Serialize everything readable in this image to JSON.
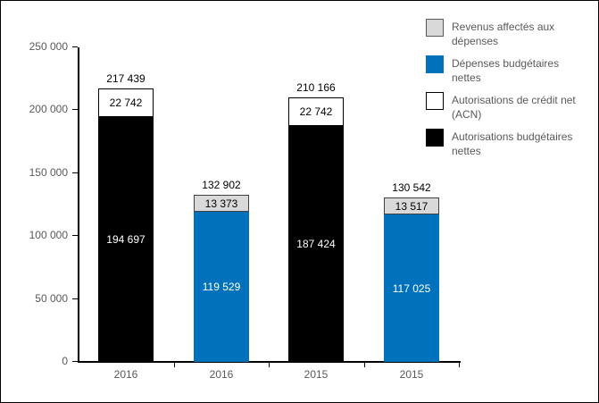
{
  "chart_data": {
    "type": "bar",
    "stacked": true,
    "title": "",
    "xlabel": "",
    "ylabel": "",
    "ylim": [
      0,
      250000
    ],
    "grid": false,
    "legend_position": "top-right",
    "yticks": [
      {
        "value": 0,
        "label": "0"
      },
      {
        "value": 50000,
        "label": "50 000"
      },
      {
        "value": 100000,
        "label": "100 000"
      },
      {
        "value": 150000,
        "label": "150 000"
      },
      {
        "value": 200000,
        "label": "200 000"
      },
      {
        "value": 250000,
        "label": "250 000"
      }
    ],
    "categories": [
      "2016",
      "2016",
      "2015",
      "2015"
    ],
    "bars": [
      {
        "category": "2016",
        "total": 217439,
        "total_label": "217 439",
        "segments": [
          {
            "series": "Autorisations budgétaires nettes",
            "value": 194697,
            "label": "194 697",
            "color": "#000000",
            "border": "#000000",
            "text_color": "#ffffff"
          },
          {
            "series": "Autorisations de crédit net (ACN)",
            "value": 22742,
            "label": "22 742",
            "color": "#ffffff",
            "border": "#000000",
            "text_color": "#000000"
          }
        ]
      },
      {
        "category": "2016",
        "total": 132902,
        "total_label": "132 902",
        "segments": [
          {
            "series": "Dépenses budgétaires nettes",
            "value": 119529,
            "label": "119 529",
            "color": "#0072BC",
            "border": "#0072BC",
            "text_color": "#ffffff"
          },
          {
            "series": "Revenus affectés aux dépenses",
            "value": 13373,
            "label": "13 373",
            "color": "#D9D9D9",
            "border": "#404040",
            "text_color": "#000000"
          }
        ]
      },
      {
        "category": "2015",
        "total": 210166,
        "total_label": "210 166",
        "segments": [
          {
            "series": "Autorisations budgétaires nettes",
            "value": 187424,
            "label": "187 424",
            "color": "#000000",
            "border": "#000000",
            "text_color": "#ffffff"
          },
          {
            "series": "Autorisations de crédit net (ACN)",
            "value": 22742,
            "label": "22 742",
            "color": "#ffffff",
            "border": "#000000",
            "text_color": "#000000"
          }
        ]
      },
      {
        "category": "2015",
        "total": 130542,
        "total_label": "130 542",
        "segments": [
          {
            "series": "Dépenses budgétaires nettes",
            "value": 117025,
            "label": "117 025",
            "color": "#0072BC",
            "border": "#0072BC",
            "text_color": "#ffffff"
          },
          {
            "series": "Revenus affectés aux dépenses",
            "value": 13517,
            "label": "13 517",
            "color": "#D9D9D9",
            "border": "#404040",
            "text_color": "#000000"
          }
        ]
      }
    ],
    "legend": [
      {
        "label": "Revenus affectés aux dépenses",
        "color": "#D9D9D9",
        "border": "#595959"
      },
      {
        "label": "Dépenses budgétaires nettes",
        "color": "#0072BC",
        "border": "#0072BC"
      },
      {
        "label": "Autorisations de crédit net (ACN)",
        "color": "#ffffff",
        "border": "#000000"
      },
      {
        "label": "Autorisations budgétaires nettes",
        "color": "#000000",
        "border": "#000000"
      }
    ],
    "colors": {
      "background": "#ffffff",
      "axis_line": "#000000",
      "axis_text": "#595959",
      "bar_blue": "#0072BC",
      "bar_black": "#000000",
      "bar_white": "#ffffff",
      "bar_gray": "#D9D9D9"
    }
  }
}
